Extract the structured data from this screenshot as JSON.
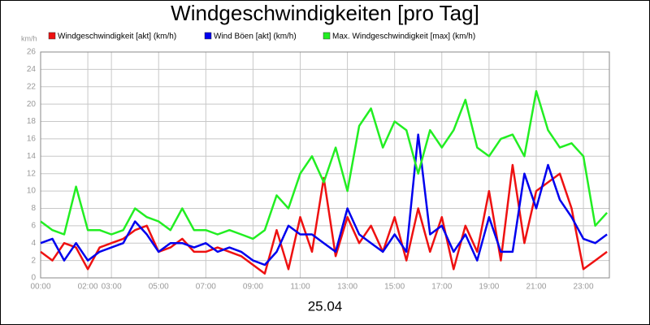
{
  "chart_data": {
    "type": "line",
    "title": "Windgeschwindigkeiten [pro Tag]",
    "ylabel": "km/h",
    "xlabel": "25.04",
    "x": [
      0,
      0.5,
      1,
      1.5,
      2,
      2.5,
      3,
      3.5,
      4,
      4.5,
      5,
      5.5,
      6,
      6.5,
      7,
      7.5,
      8,
      8.5,
      9,
      9.5,
      10,
      10.5,
      11,
      11.5,
      12,
      12.5,
      13,
      13.5,
      14,
      14.5,
      15,
      15.5,
      16,
      16.5,
      17,
      17.5,
      18,
      18.5,
      19,
      19.5,
      20,
      20.5,
      21,
      21.5,
      22,
      22.5,
      23,
      23.5,
      24
    ],
    "xlim": [
      0,
      24.1
    ],
    "xticks": [
      {
        "value": 0,
        "label": "00:00"
      },
      {
        "value": 2,
        "label": "02:00"
      },
      {
        "value": 3,
        "label": "03:00"
      },
      {
        "value": 5,
        "label": "05:00"
      },
      {
        "value": 7,
        "label": "07:00"
      },
      {
        "value": 9,
        "label": "09:00"
      },
      {
        "value": 11,
        "label": "11:00"
      },
      {
        "value": 13,
        "label": "13:00"
      },
      {
        "value": 15,
        "label": "15:00"
      },
      {
        "value": 17,
        "label": "17:00"
      },
      {
        "value": 19,
        "label": "19:00"
      },
      {
        "value": 21,
        "label": "21:00"
      },
      {
        "value": 23,
        "label": "23:00"
      }
    ],
    "ylim": [
      0,
      26
    ],
    "yticks": [
      0,
      2,
      4,
      6,
      8,
      10,
      12,
      14,
      16,
      18,
      20,
      22,
      24,
      26
    ],
    "grid": true,
    "series": [
      {
        "name": "Windgeschwindigkeit [akt] (km/h)",
        "color": "#ee1111",
        "values": [
          3,
          2,
          4,
          3.5,
          1,
          3.5,
          4,
          4.5,
          5.5,
          6,
          3,
          3.5,
          4.5,
          3,
          3,
          3.5,
          3,
          2.5,
          1.5,
          0.5,
          5.5,
          1,
          7,
          3,
          11.5,
          2.5,
          7,
          4,
          6,
          3,
          7,
          2,
          8,
          3,
          7,
          1,
          6,
          3,
          10,
          2,
          13,
          4,
          10,
          11,
          12,
          8,
          1,
          2,
          3
        ]
      },
      {
        "name": "Wind Böen [akt] (km/h)",
        "color": "#0000ee",
        "values": [
          4,
          4.5,
          2,
          4,
          2,
          3,
          3.5,
          4,
          6.5,
          5,
          3,
          4,
          4,
          3.5,
          4,
          3,
          3.5,
          3,
          2,
          1.5,
          3,
          6,
          5,
          5,
          4,
          3,
          8,
          5,
          4,
          3,
          5,
          3,
          16.5,
          5,
          6,
          3,
          5,
          2,
          7,
          3,
          3,
          12,
          8,
          13,
          9,
          7,
          4.5,
          4,
          5
        ]
      },
      {
        "name": "Max. Windgeschwindigkeit [max] (km/h)",
        "color": "#22ee22",
        "values": [
          6.5,
          5.5,
          5,
          10.5,
          5.5,
          5.5,
          5,
          5.5,
          8,
          7,
          6.5,
          5.5,
          8,
          5.5,
          5.5,
          5,
          5.5,
          5,
          4.5,
          5.5,
          9.5,
          8,
          12,
          14,
          11,
          15,
          10,
          17.5,
          19.5,
          15,
          18,
          17,
          12,
          17,
          15,
          17,
          20.5,
          15,
          14,
          16,
          16.5,
          14,
          21.5,
          17,
          15,
          15.5,
          14,
          6,
          7.5
        ]
      }
    ]
  }
}
